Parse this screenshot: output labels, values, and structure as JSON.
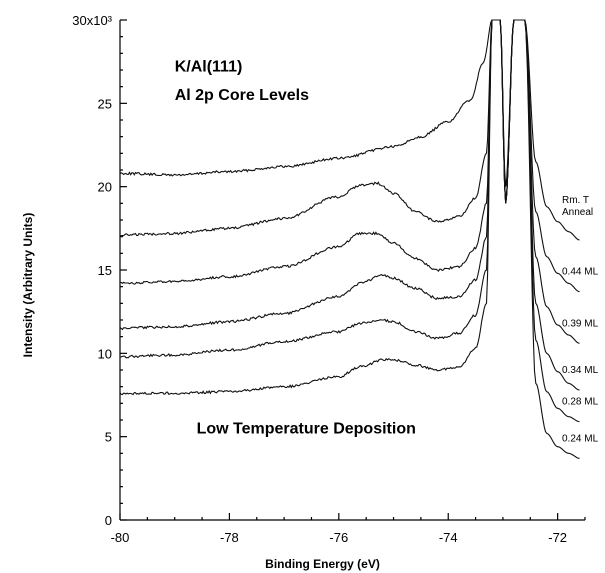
{
  "chart_data": {
    "type": "line",
    "xlabel": "Binding Energy (eV)",
    "ylabel": "Intensity (Arbitrary Units)",
    "xlim": [
      -80,
      -71.5
    ],
    "ylim": [
      0,
      30000
    ],
    "x_ticks": [
      -80,
      -78,
      -76,
      -74,
      -72
    ],
    "x_tick_labels": [
      "-80",
      "-78",
      "-76",
      "-74",
      "-72"
    ],
    "y_ticks": [
      0,
      5000,
      10000,
      15000,
      20000,
      25000,
      30000
    ],
    "y_tick_labels": [
      "0",
      "5",
      "10",
      "15",
      "20",
      "25",
      "30x10³"
    ],
    "grid": false,
    "annotations": [
      {
        "text": "K/Al(111)",
        "x": -79.0,
        "y": 26900
      },
      {
        "text": "Al 2p Core Levels",
        "x": -79.0,
        "y": 25200
      },
      {
        "text": "Low Temperature Deposition",
        "x": -78.6,
        "y": 5200
      }
    ],
    "series": [
      {
        "label_lines": [
          "Rm. T",
          "Anneal"
        ],
        "x": [
          -80,
          -79,
          -78,
          -77,
          -76,
          -75,
          -74.5,
          -74,
          -73.6,
          -73.35,
          -73.2,
          -73.05,
          -72.95,
          -72.8,
          -72.7,
          -72.6,
          -72.4,
          -72.2,
          -72.0,
          -71.8,
          -71.6
        ],
        "y": [
          20800,
          20700,
          20900,
          21200,
          21700,
          22400,
          23000,
          23900,
          25200,
          27500,
          30000,
          30000,
          20000,
          30000,
          30000,
          30000,
          21500,
          18800,
          17900,
          17300,
          16800
        ]
      },
      {
        "label": "0.44 ML",
        "x": [
          -80,
          -79,
          -78,
          -77,
          -76,
          -75.6,
          -75.3,
          -75.0,
          -74.6,
          -74.2,
          -73.8,
          -73.5,
          -73.3,
          -73.2,
          -73.05,
          -72.95,
          -72.8,
          -72.7,
          -72.6,
          -72.4,
          -72.2,
          -72.0,
          -71.8,
          -71.6
        ],
        "y": [
          17100,
          17200,
          17500,
          18100,
          19400,
          20100,
          20200,
          19600,
          18500,
          17900,
          18200,
          19300,
          22000,
          30000,
          30000,
          19000,
          30000,
          30000,
          30000,
          18500,
          15800,
          14800,
          14200,
          13700
        ]
      },
      {
        "label": "0.39 ML",
        "x": [
          -80,
          -79,
          -78,
          -77,
          -76,
          -75.6,
          -75.3,
          -75.0,
          -74.6,
          -74.2,
          -73.8,
          -73.5,
          -73.3,
          -73.2,
          -73.05,
          -72.95,
          -72.8,
          -72.7,
          -72.6,
          -72.4,
          -72.2,
          -72.0,
          -71.8,
          -71.6
        ],
        "y": [
          14200,
          14300,
          14600,
          15200,
          16400,
          17200,
          17200,
          16600,
          15700,
          15000,
          15200,
          16300,
          19000,
          30000,
          30000,
          19000,
          30000,
          30000,
          30000,
          15800,
          12800,
          11700,
          11100,
          10600
        ]
      },
      {
        "label": "0.34 ML",
        "x": [
          -80,
          -79,
          -78,
          -77,
          -76,
          -75.6,
          -75.2,
          -75.0,
          -74.6,
          -74.2,
          -73.8,
          -73.5,
          -73.3,
          -73.2,
          -73.05,
          -72.95,
          -72.8,
          -72.7,
          -72.6,
          -72.4,
          -72.2,
          -72.0,
          -71.8,
          -71.6
        ],
        "y": [
          11500,
          11600,
          11900,
          12400,
          13400,
          14200,
          14700,
          14500,
          13900,
          13300,
          13400,
          14400,
          17000,
          30000,
          30000,
          19000,
          30000,
          30000,
          30000,
          13000,
          10000,
          8900,
          8200,
          7800
        ]
      },
      {
        "label": "0.28 ML",
        "x": [
          -80,
          -79,
          -78,
          -77,
          -76,
          -75.6,
          -75.2,
          -75.0,
          -74.6,
          -74.2,
          -73.8,
          -73.5,
          -73.3,
          -73.2,
          -73.05,
          -72.95,
          -72.8,
          -72.7,
          -72.6,
          -72.4,
          -72.2,
          -72.0,
          -71.8,
          -71.6
        ],
        "y": [
          9800,
          9900,
          10200,
          10700,
          11300,
          11800,
          12000,
          11900,
          11300,
          10900,
          11200,
          12300,
          15000,
          30000,
          30000,
          19000,
          30000,
          30000,
          30000,
          10800,
          7700,
          6700,
          6200,
          5900
        ]
      },
      {
        "label": "0.24 ML",
        "x": [
          -80,
          -79,
          -78,
          -77,
          -76,
          -75.6,
          -75.2,
          -75.0,
          -74.6,
          -74.2,
          -73.8,
          -73.5,
          -73.3,
          -73.2,
          -73.05,
          -72.95,
          -72.8,
          -72.7,
          -72.6,
          -72.4,
          -72.2,
          -72.0,
          -71.8,
          -71.6
        ],
        "y": [
          7600,
          7600,
          7700,
          8000,
          8600,
          9200,
          9600,
          9600,
          9300,
          9000,
          9200,
          10300,
          13000,
          30000,
          30000,
          19000,
          30000,
          30000,
          30000,
          8200,
          5200,
          4400,
          4000,
          3700
        ]
      }
    ]
  }
}
